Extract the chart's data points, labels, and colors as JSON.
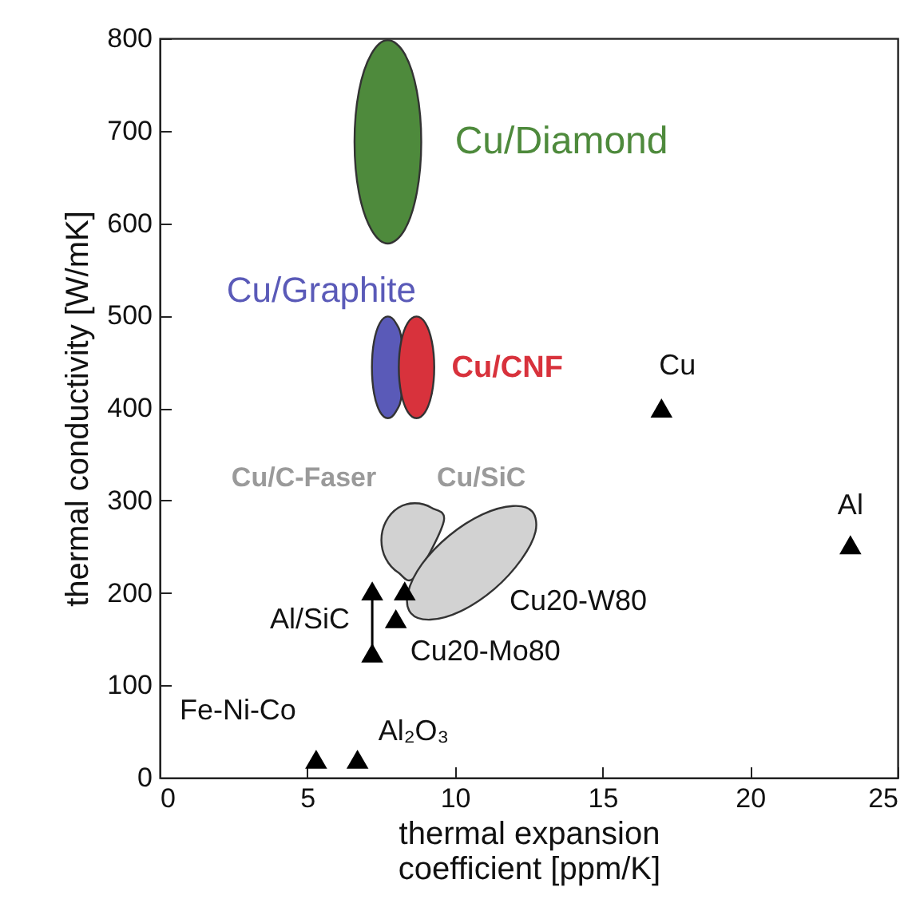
{
  "chart_data": {
    "type": "scatter",
    "xlabel": "thermal expansion coefficient [ppm/K]",
    "ylabel": "thermal conductivity [W/mK]",
    "xlim": [
      0,
      25
    ],
    "xticks": [
      0,
      5,
      10,
      15,
      20,
      25
    ],
    "ylim": [
      0,
      800
    ],
    "yticks": [
      0,
      100,
      200,
      300,
      400,
      500,
      600,
      700,
      800
    ],
    "grid": false,
    "series": [
      {
        "name": "Cu/Diamond",
        "type": "area",
        "color": "#4e8a3c",
        "x": [
          8.86,
          8.71,
          8.3,
          7.73,
          7.17,
          6.75,
          6.6,
          6.75,
          7.17,
          7.73,
          8.3,
          8.71
        ],
        "values": [
          688,
          743,
          783,
          798,
          783,
          743,
          688,
          633,
          593,
          578,
          593,
          633
        ]
      },
      {
        "name": "Cu/Graphite",
        "type": "area",
        "color": "#5a5ab8",
        "x": [
          8.2,
          8.0,
          7.73,
          7.46,
          7.26,
          7.19,
          7.26,
          7.46,
          7.73,
          8.0,
          8.2
        ],
        "values": [
          472,
          492,
          499,
          492,
          472,
          444,
          416,
          396,
          389,
          396,
          416
        ]
      },
      {
        "name": "Cu/CNF",
        "type": "area",
        "color": "#d8323c",
        "x": [
          9.3,
          9.22,
          9.0,
          8.7,
          8.4,
          8.18,
          8.1,
          8.18,
          8.4,
          8.7,
          9.0,
          9.22
        ],
        "values": [
          444,
          472,
          492,
          499,
          492,
          472,
          444,
          416,
          396,
          389,
          396,
          416
        ]
      },
      {
        "name": "Cu/C-Faser",
        "type": "area",
        "color": "#d2d2d2",
        "x": [
          9.62,
          9.21,
          8.64,
          8.08,
          7.66,
          7.51,
          7.66,
          8.08,
          8.64
        ],
        "values": [
          277,
          292,
          297,
          292,
          277,
          257,
          237,
          222,
          217
        ]
      },
      {
        "name": "Cu/SiC",
        "type": "area",
        "color": "#d2d2d2",
        "x": [
          12.62,
          12.73,
          12.25,
          11.33,
          10.19,
          9.17,
          8.51,
          8.41,
          8.88,
          9.81,
          10.94,
          11.97
        ],
        "values": [
          288,
          266,
          236,
          204,
          180,
          171,
          178,
          200,
          231,
          262,
          285,
          294
        ]
      },
      {
        "type": "line",
        "color": "#000000",
        "x": [
          7.2,
          7.2
        ],
        "values": [
          202,
          135
        ]
      },
      {
        "color": "#000000",
        "marker": "triangle",
        "x": [
          5.3,
          6.7,
          7.2,
          7.2,
          8.3,
          8.0,
          17.0,
          23.4
        ],
        "values": [
          20,
          20,
          202,
          135,
          202,
          172,
          400,
          252
        ]
      }
    ],
    "annotations": [
      {
        "text": "Cu",
        "x": 17.0,
        "y": 400
      },
      {
        "text": "Al",
        "x": 23.4,
        "y": 252
      },
      {
        "text": "Fe-Ni-Co",
        "x": 5.3,
        "y": 20
      },
      {
        "text": "Al₂O₃",
        "x": 6.7,
        "y": 20
      },
      {
        "text": "Al/SiC",
        "x": 7.2,
        "y": 170
      },
      {
        "text": "Cu20-Mo80",
        "x": 8.0,
        "y": 172
      },
      "Cu20-W80"
    ]
  }
}
